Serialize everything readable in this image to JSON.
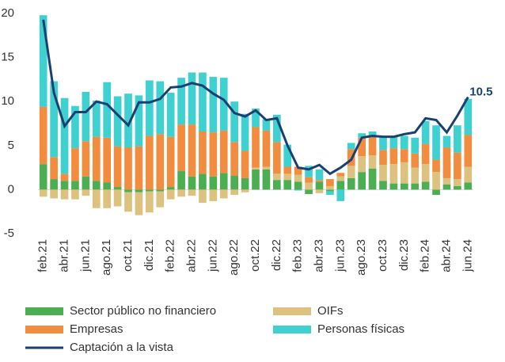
{
  "chart_data": {
    "type": "bar",
    "stacked": true,
    "categories": [
      "feb.21",
      null,
      "abr.21",
      null,
      "jun.21",
      null,
      "ago.21",
      null,
      "oct.21",
      null,
      "dic.21",
      null,
      "feb.22",
      null,
      "abr.22",
      null,
      "jun.22",
      null,
      "ago.22",
      null,
      "oct.22",
      null,
      "dic.22",
      null,
      "feb.23",
      null,
      "abr.23",
      null,
      "jun.23",
      null,
      "ago.23",
      null,
      "oct.23",
      null,
      "dic.23",
      null,
      "feb.24",
      null,
      "abr.24",
      null,
      "jun.24"
    ],
    "ylim": [
      -5,
      20
    ],
    "yticks": [
      -5,
      0,
      5,
      10,
      15,
      20
    ],
    "series": [
      {
        "name": "Sector público no financiero",
        "type": "bar",
        "color": "#4cae52",
        "values": [
          2.9,
          1.2,
          1.0,
          1.0,
          1.5,
          1.0,
          0.8,
          0.3,
          -0.3,
          -0.3,
          -0.2,
          -0.2,
          0.3,
          2.1,
          1.5,
          1.8,
          1.5,
          1.9,
          1.6,
          1.3,
          2.3,
          2.3,
          1.1,
          1.1,
          0.9,
          -0.5,
          0.9,
          -0.2,
          1.0,
          1.3,
          2.0,
          2.4,
          1.0,
          0.7,
          0.7,
          0.7,
          0.9,
          -0.6,
          0.6,
          0.4,
          0.8
        ]
      },
      {
        "name": "OIFs",
        "type": "bar",
        "color": "#dcc27e",
        "values": [
          -0.8,
          -1.0,
          -1.1,
          -1.1,
          -0.7,
          -2.1,
          -2.1,
          -1.9,
          -2.2,
          -2.6,
          -2.4,
          -1.8,
          -1.1,
          -0.8,
          -0.7,
          -1.5,
          -1.3,
          -1.0,
          -0.6,
          -0.3,
          0.2,
          0.3,
          0.7,
          0.7,
          0.8,
          0.8,
          -0.4,
          0.4,
          0.5,
          1.4,
          1.8,
          1.5,
          1.8,
          2.2,
          2.4,
          1.8,
          2.0,
          2.0,
          0.7,
          0.8,
          1.8
        ]
      },
      {
        "name": "Empresas",
        "type": "bar",
        "color": "#f28c3e",
        "values": [
          6.5,
          2.5,
          0.8,
          3.7,
          4.0,
          5.0,
          5.1,
          4.6,
          4.8,
          4.9,
          6.1,
          6.3,
          5.7,
          5.3,
          5.9,
          4.8,
          5.0,
          4.8,
          3.8,
          3.1,
          4.6,
          4.1,
          3.6,
          0.8,
          0.9,
          0.6,
          0.2,
          0.8,
          0.4,
          1.9,
          2.1,
          2.2,
          1.7,
          1.8,
          1.5,
          1.6,
          2.3,
          1.4,
          3.5,
          3.0,
          3.6
        ]
      },
      {
        "name": "Personas físicas",
        "type": "bar",
        "color": "#3fd0d0",
        "values": [
          10.4,
          8.6,
          8.6,
          4.8,
          5.6,
          4.1,
          6.3,
          5.7,
          6.1,
          5.8,
          6.3,
          6.0,
          5.0,
          5.3,
          5.9,
          6.7,
          6.3,
          6.0,
          4.6,
          4.2,
          2.1,
          1.3,
          3.1,
          2.5,
          -0.1,
          1.3,
          1.2,
          -0.4,
          -1.3,
          0.7,
          0.5,
          0.5,
          1.4,
          1.3,
          1.5,
          1.8,
          2.6,
          3.9,
          1.3,
          3.1,
          4.1
        ]
      },
      {
        "name": "Captación a la vista",
        "type": "line",
        "color": "#1a3f73",
        "values": [
          19.3,
          11.0,
          7.2,
          8.8,
          8.8,
          10.0,
          9.7,
          8.5,
          7.3,
          9.9,
          9.9,
          10.3,
          11.6,
          11.7,
          12.1,
          11.8,
          10.9,
          10.2,
          8.7,
          8.3,
          9.0,
          7.9,
          8.1,
          5.0,
          2.5,
          2.3,
          2.8,
          1.8,
          2.5,
          3.4,
          5.9,
          6.1,
          6.0,
          6.0,
          6.3,
          6.5,
          8.1,
          7.9,
          6.5,
          8.4,
          10.5
        ]
      }
    ]
  }
}
